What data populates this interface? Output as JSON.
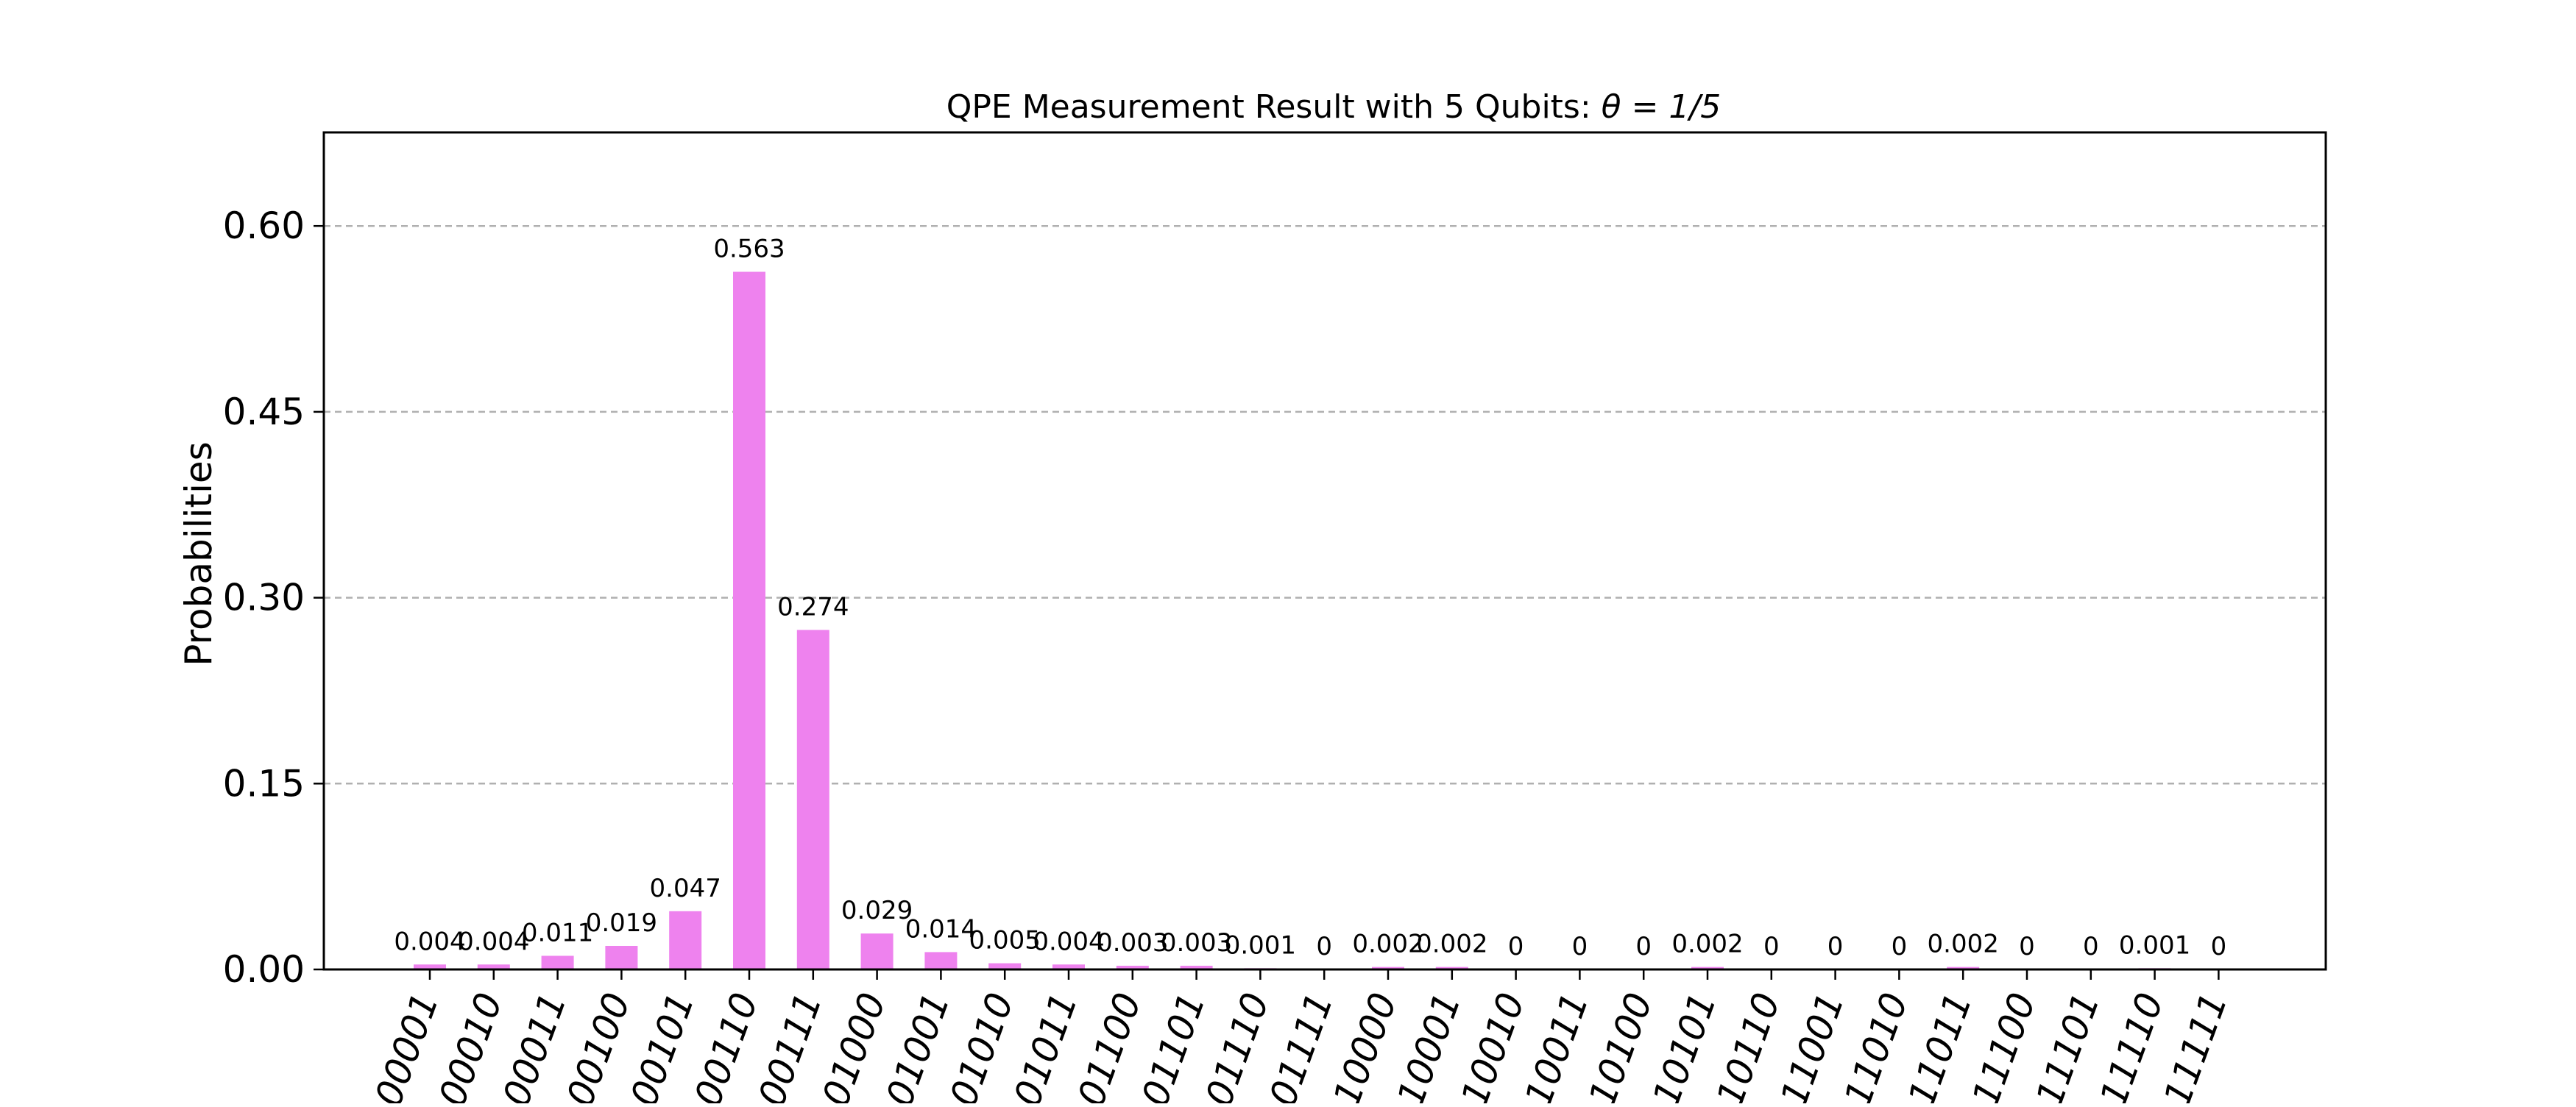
{
  "chart_data": {
    "type": "bar",
    "title": "QPE Measurement Result with 5 Qubits: θ = 1/5",
    "title_prefix": "QPE Measurement Result with 5 Qubits: ",
    "title_math": "θ = 1/5",
    "xlabel": "",
    "ylabel": "Probabilities",
    "categories": [
      "00001",
      "00010",
      "00011",
      "00100",
      "00101",
      "00110",
      "00111",
      "01000",
      "01001",
      "01010",
      "01011",
      "01100",
      "01101",
      "01110",
      "01111",
      "10000",
      "10001",
      "10010",
      "10011",
      "10100",
      "10101",
      "10110",
      "11001",
      "11010",
      "11011",
      "11100",
      "11101",
      "11110",
      "11111"
    ],
    "values": [
      0.004,
      0.004,
      0.011,
      0.019,
      0.047,
      0.563,
      0.274,
      0.029,
      0.014,
      0.005,
      0.004,
      0.003,
      0.003,
      0.001,
      0,
      0.002,
      0.002,
      0,
      0,
      0,
      0.002,
      0,
      0,
      0,
      0.002,
      0,
      0,
      0.001,
      0
    ],
    "data_labels": [
      "0.004",
      "0.004",
      "0.011",
      "0.019",
      "0.047",
      "0.563",
      "0.274",
      "0.029",
      "0.014",
      "0.005",
      "0.004",
      "0.003",
      "0.003",
      "0.001",
      "0",
      "0.002",
      "0.002",
      "0",
      "0",
      "0",
      "0.002",
      "0",
      "0",
      "0",
      "0.002",
      "0",
      "0",
      "0.001",
      "0"
    ],
    "yticks": [
      0.0,
      0.15,
      0.3,
      0.45,
      0.6
    ],
    "ytick_labels": [
      "0.00",
      "0.15",
      "0.30",
      "0.45",
      "0.60"
    ],
    "ylim": [
      0,
      0.6755
    ],
    "grid": "horizontal dashed",
    "bar_color": "#ee82ee",
    "grid_color": "#b0b0b0"
  }
}
